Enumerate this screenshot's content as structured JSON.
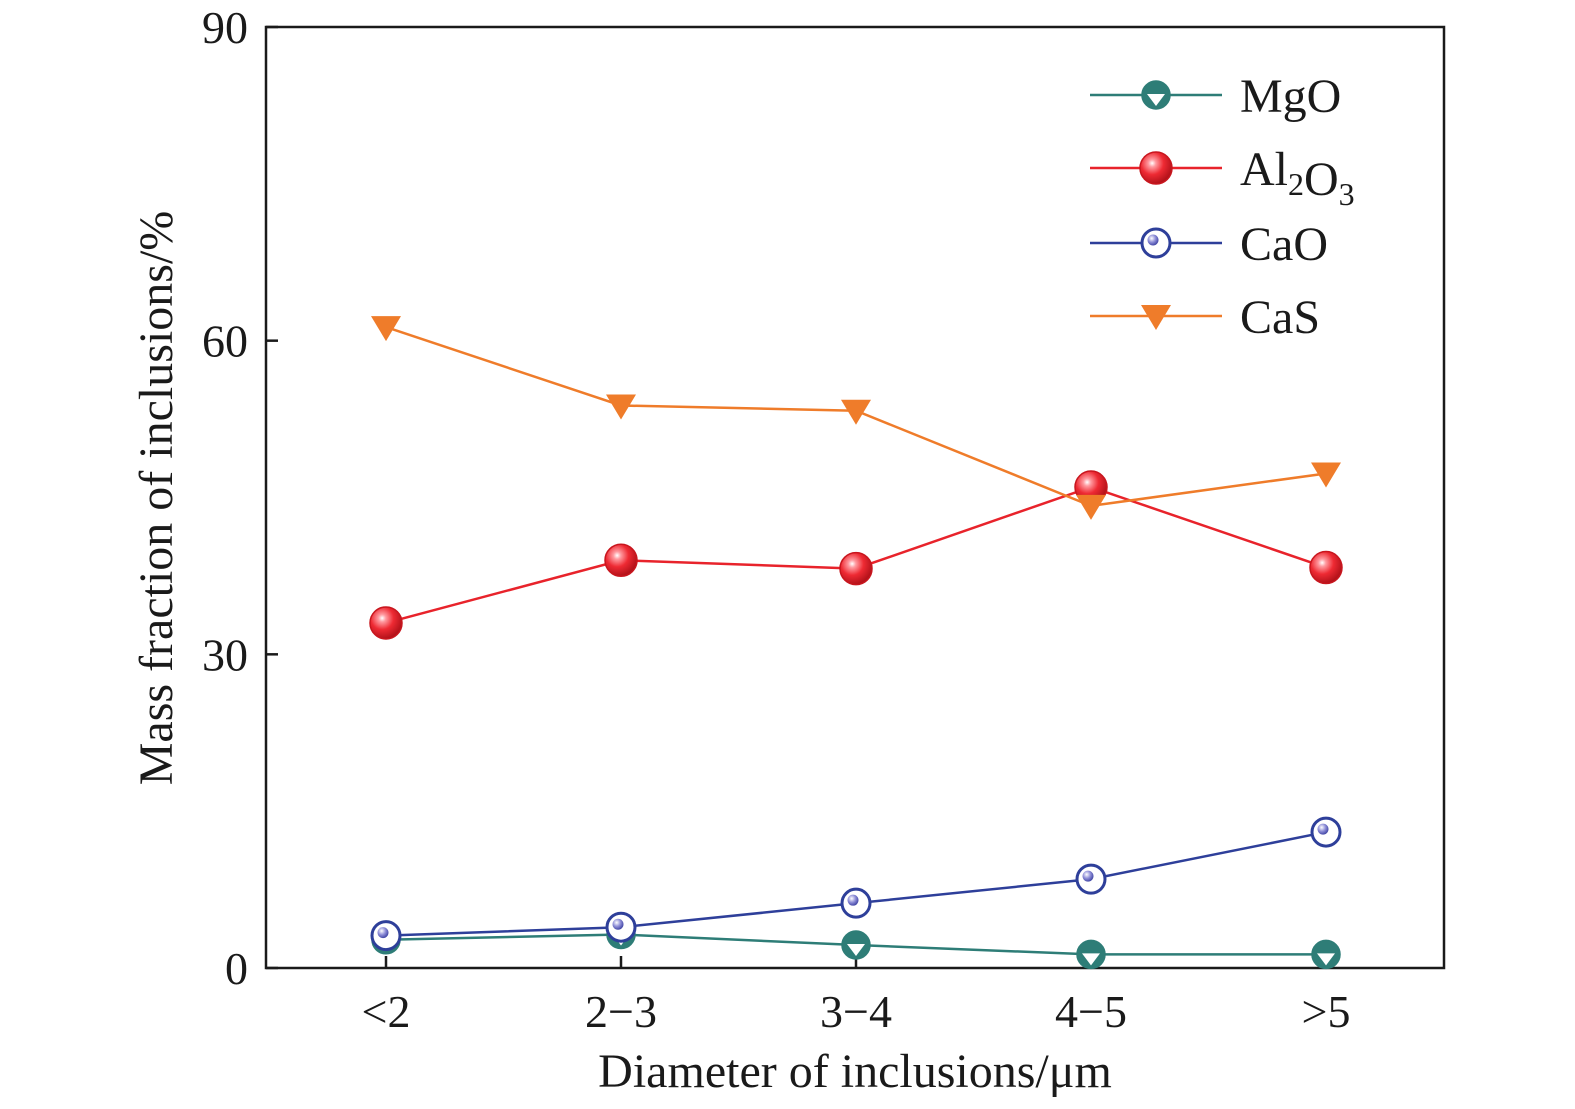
{
  "chart_data": {
    "type": "line",
    "title": "",
    "xlabel": "Diameter of inclusions/μm",
    "ylabel": "Mass fraction of inclusions/%",
    "categories": [
      "<2",
      "2−3",
      "3−4",
      "4−5",
      ">5"
    ],
    "ylim": [
      0,
      90
    ],
    "yticks": [
      "0",
      "30",
      "60",
      "90"
    ],
    "grid": false,
    "legend_position": "top-right",
    "series": [
      {
        "name": "MgO",
        "name_parts": [
          {
            "text": "MgO",
            "sub": ""
          }
        ],
        "color": "#2e7d77",
        "marker": "filled-circle-with-triangle",
        "values": [
          2.7,
          3.2,
          2.2,
          1.3,
          1.3
        ]
      },
      {
        "name": "Al2O3",
        "name_parts": [
          {
            "text": "Al",
            "sub": "2"
          },
          {
            "text": "O",
            "sub": "3"
          }
        ],
        "color": "#e8232b",
        "marker": "red-sphere",
        "values": [
          33.0,
          39.0,
          38.2,
          46.0,
          38.3
        ]
      },
      {
        "name": "CaO",
        "name_parts": [
          {
            "text": "CaO",
            "sub": ""
          }
        ],
        "color": "#2e3f9a",
        "marker": "open-circle-with-dot",
        "values": [
          3.1,
          3.9,
          6.2,
          8.5,
          13.0
        ]
      },
      {
        "name": "CaS",
        "name_parts": [
          {
            "text": "CaS",
            "sub": ""
          }
        ],
        "color": "#ef7c2a",
        "marker": "down-triangle",
        "values": [
          61.3,
          53.8,
          53.3,
          44.2,
          47.3
        ]
      }
    ]
  }
}
